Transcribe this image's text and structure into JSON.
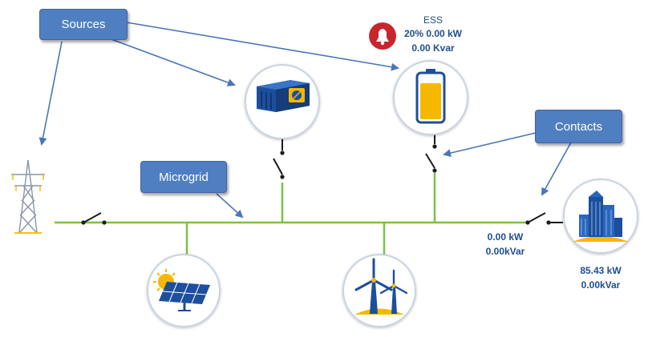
{
  "callouts": {
    "sources": "Sources",
    "microgrid": "Microgrid",
    "contacts": "Contacts"
  },
  "ess": {
    "title": "ESS",
    "line1": "20% 0.00 kW",
    "line2": "0.00 Kvar",
    "alarm_icon": "bell-icon",
    "soc_percent": 20
  },
  "feeder": {
    "kw": "0.00 kW",
    "kvar": "0.00kVar"
  },
  "building": {
    "kw": "85.43 kW",
    "kvar": "0.00kVar"
  },
  "icons": {
    "grid": "transmission-tower-icon",
    "generator": "generator-icon",
    "battery": "battery-icon",
    "solar": "solar-panel-icon",
    "wind": "wind-turbine-icon",
    "load": "building-icon"
  },
  "colors": {
    "bus": "#7ac143",
    "callout": "#4f7fc1",
    "arrow": "#4a76b8",
    "text": "#1f4e8c",
    "alarm": "#c9252c",
    "battery_fill": "#f5b800"
  }
}
